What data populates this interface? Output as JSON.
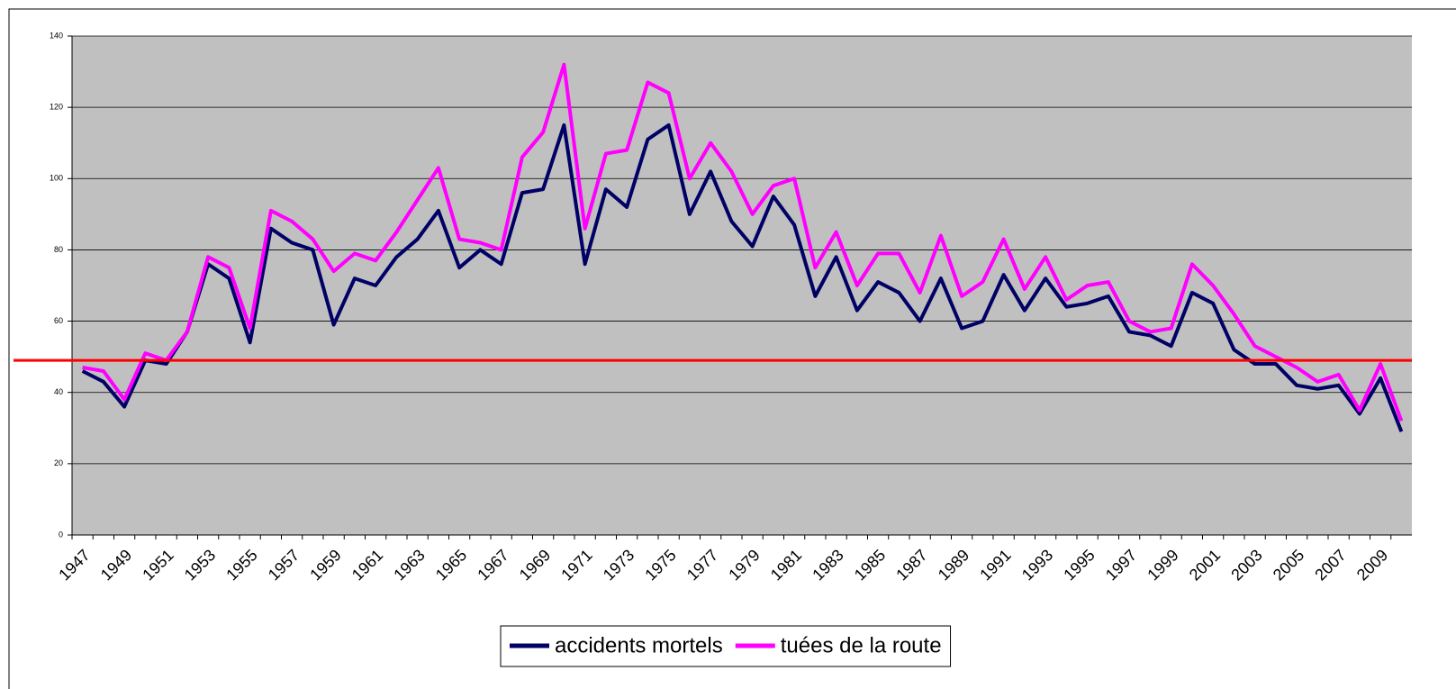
{
  "chart_data": {
    "type": "line",
    "categories": [
      "1947",
      null,
      "1949",
      null,
      "1951",
      null,
      "1953",
      null,
      "1955",
      null,
      "1957",
      null,
      "1959",
      null,
      "1961",
      null,
      "1963",
      null,
      "1965",
      null,
      "1967",
      null,
      "1969",
      null,
      "1971",
      null,
      "1973",
      null,
      "1975",
      null,
      "1977",
      null,
      "1979",
      null,
      "1981",
      null,
      "1983",
      null,
      "1985",
      null,
      "1987",
      null,
      "1989",
      null,
      "1991",
      null,
      "1993",
      null,
      "1995",
      null,
      "1997",
      null,
      "1999",
      null,
      "2001",
      null,
      "2003",
      null,
      "2005",
      null,
      "2007",
      null,
      "2009",
      null
    ],
    "series": [
      {
        "name": "accidents mortels",
        "color": "#000066",
        "values": [
          46,
          43,
          36,
          49,
          48,
          57,
          76,
          72,
          54,
          86,
          82,
          80,
          59,
          72,
          70,
          78,
          83,
          91,
          75,
          80,
          76,
          96,
          97,
          115,
          76,
          97,
          92,
          111,
          115,
          90,
          102,
          88,
          81,
          95,
          87,
          67,
          78,
          63,
          71,
          68,
          60,
          72,
          58,
          60,
          73,
          63,
          72,
          64,
          65,
          67,
          57,
          56,
          53,
          68,
          65,
          52,
          48,
          48,
          42,
          41,
          42,
          34,
          44,
          29
        ]
      },
      {
        "name": "tuées de la route",
        "color": "#ff00ff",
        "values": [
          47,
          46,
          38,
          51,
          49,
          57,
          78,
          75,
          58,
          91,
          88,
          83,
          74,
          79,
          77,
          85,
          94,
          103,
          83,
          82,
          80,
          106,
          113,
          132,
          86,
          107,
          108,
          127,
          124,
          100,
          110,
          102,
          90,
          98,
          100,
          75,
          85,
          70,
          79,
          79,
          68,
          84,
          67,
          71,
          83,
          69,
          78,
          66,
          70,
          71,
          60,
          57,
          58,
          76,
          70,
          62,
          53,
          50,
          47,
          43,
          45,
          35,
          48,
          32
        ]
      }
    ],
    "reference_line": {
      "value": 49,
      "color": "#ff0000"
    },
    "ylim": [
      0,
      140
    ],
    "yticks": [
      0,
      20,
      40,
      60,
      80,
      100,
      120,
      140
    ],
    "grid": true,
    "legend": "bottom"
  }
}
